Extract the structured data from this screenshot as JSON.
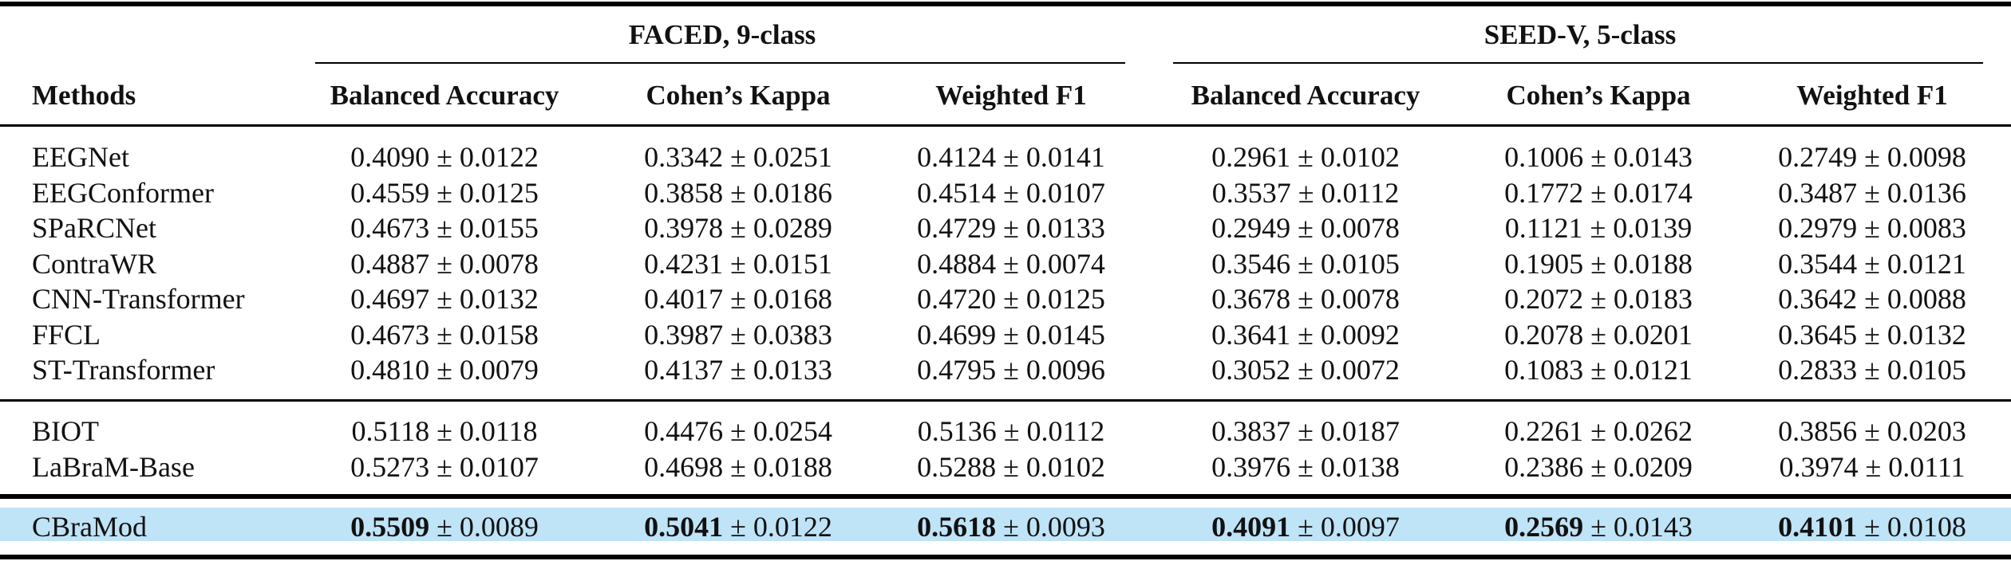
{
  "table": {
    "header": {
      "methods_label": "Methods",
      "groups": [
        {
          "title": "FACED, 9-class",
          "columns": [
            "Balanced Accuracy",
            "Cohen’s Kappa",
            "Weighted F1"
          ]
        },
        {
          "title": "SEED-V, 5-class",
          "columns": [
            "Balanced Accuracy",
            "Cohen’s Kappa",
            "Weighted F1"
          ]
        }
      ]
    },
    "sections": [
      {
        "rows": [
          {
            "method": "EEGNet",
            "values": [
              [
                "0.4090",
                "0.0122"
              ],
              [
                "0.3342",
                "0.0251"
              ],
              [
                "0.4124",
                "0.0141"
              ],
              [
                "0.2961",
                "0.0102"
              ],
              [
                "0.1006",
                "0.0143"
              ],
              [
                "0.2749",
                "0.0098"
              ]
            ]
          },
          {
            "method": "EEGConformer",
            "values": [
              [
                "0.4559",
                "0.0125"
              ],
              [
                "0.3858",
                "0.0186"
              ],
              [
                "0.4514",
                "0.0107"
              ],
              [
                "0.3537",
                "0.0112"
              ],
              [
                "0.1772",
                "0.0174"
              ],
              [
                "0.3487",
                "0.0136"
              ]
            ]
          },
          {
            "method": "SPaRCNet",
            "values": [
              [
                "0.4673",
                "0.0155"
              ],
              [
                "0.3978",
                "0.0289"
              ],
              [
                "0.4729",
                "0.0133"
              ],
              [
                "0.2949",
                "0.0078"
              ],
              [
                "0.1121",
                "0.0139"
              ],
              [
                "0.2979",
                "0.0083"
              ]
            ]
          },
          {
            "method": "ContraWR",
            "values": [
              [
                "0.4887",
                "0.0078"
              ],
              [
                "0.4231",
                "0.0151"
              ],
              [
                "0.4884",
                "0.0074"
              ],
              [
                "0.3546",
                "0.0105"
              ],
              [
                "0.1905",
                "0.0188"
              ],
              [
                "0.3544",
                "0.0121"
              ]
            ]
          },
          {
            "method": "CNN-Transformer",
            "values": [
              [
                "0.4697",
                "0.0132"
              ],
              [
                "0.4017",
                "0.0168"
              ],
              [
                "0.4720",
                "0.0125"
              ],
              [
                "0.3678",
                "0.0078"
              ],
              [
                "0.2072",
                "0.0183"
              ],
              [
                "0.3642",
                "0.0088"
              ]
            ]
          },
          {
            "method": "FFCL",
            "values": [
              [
                "0.4673",
                "0.0158"
              ],
              [
                "0.3987",
                "0.0383"
              ],
              [
                "0.4699",
                "0.0145"
              ],
              [
                "0.3641",
                "0.0092"
              ],
              [
                "0.2078",
                "0.0201"
              ],
              [
                "0.3645",
                "0.0132"
              ]
            ]
          },
          {
            "method": "ST-Transformer",
            "values": [
              [
                "0.4810",
                "0.0079"
              ],
              [
                "0.4137",
                "0.0133"
              ],
              [
                "0.4795",
                "0.0096"
              ],
              [
                "0.3052",
                "0.0072"
              ],
              [
                "0.1083",
                "0.0121"
              ],
              [
                "0.2833",
                "0.0105"
              ]
            ]
          }
        ]
      },
      {
        "rows": [
          {
            "method": "BIOT",
            "values": [
              [
                "0.5118",
                "0.0118"
              ],
              [
                "0.4476",
                "0.0254"
              ],
              [
                "0.5136",
                "0.0112"
              ],
              [
                "0.3837",
                "0.0187"
              ],
              [
                "0.2261",
                "0.0262"
              ],
              [
                "0.3856",
                "0.0203"
              ]
            ]
          },
          {
            "method": "LaBraM-Base",
            "values": [
              [
                "0.5273",
                "0.0107"
              ],
              [
                "0.4698",
                "0.0188"
              ],
              [
                "0.5288",
                "0.0102"
              ],
              [
                "0.3976",
                "0.0138"
              ],
              [
                "0.2386",
                "0.0209"
              ],
              [
                "0.3974",
                "0.0111"
              ]
            ]
          }
        ]
      },
      {
        "highlight": true,
        "highlight_color": "#bfe3f7",
        "rows": [
          {
            "method": "CBraMod",
            "bold_mean": true,
            "values": [
              [
                "0.5509",
                "0.0089"
              ],
              [
                "0.5041",
                "0.0122"
              ],
              [
                "0.5618",
                "0.0093"
              ],
              [
                "0.4091",
                "0.0097"
              ],
              [
                "0.2569",
                "0.0143"
              ],
              [
                "0.4101",
                "0.0108"
              ]
            ]
          }
        ]
      }
    ]
  }
}
